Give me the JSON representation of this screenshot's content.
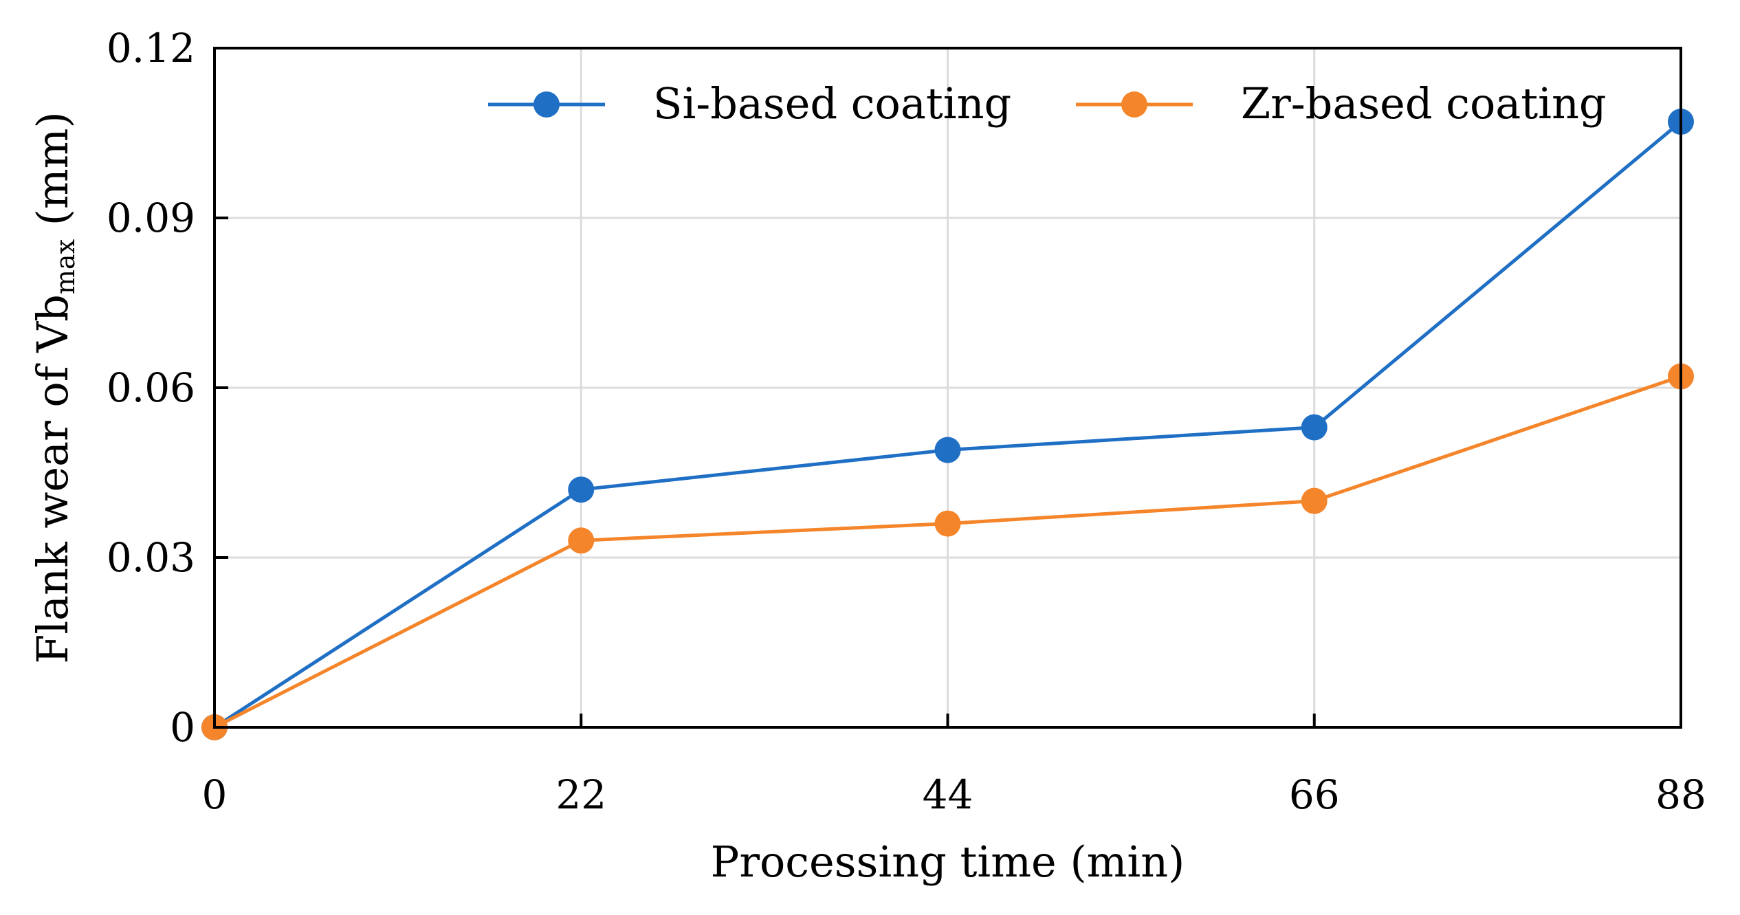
{
  "chart_data": {
    "type": "line",
    "title": "",
    "xlabel": "Processing time (min)",
    "ylabel_main": "Flank wear of Vb",
    "ylabel_subscript": "max",
    "ylabel_suffix": " (mm)",
    "x": [
      0,
      22,
      44,
      66,
      88
    ],
    "xlim": [
      0,
      88
    ],
    "ylim": [
      0,
      0.12
    ],
    "x_ticks": [
      0,
      22,
      44,
      66,
      88
    ],
    "x_tick_labels": [
      "0",
      "22",
      "44",
      "66",
      "88"
    ],
    "y_ticks": [
      0,
      0.03,
      0.06,
      0.09,
      0.12
    ],
    "y_tick_labels": [
      "0",
      "0.03",
      "0.06",
      "0.09",
      "0.12"
    ],
    "grid": true,
    "legend_position": "top-right",
    "series": [
      {
        "name": "Si-based coating",
        "color": "#1f6fc5",
        "values": [
          0,
          0.042,
          0.049,
          0.053,
          0.107
        ]
      },
      {
        "name": "Zr-based coating",
        "color": "#f5852a",
        "values": [
          0,
          0.033,
          0.036,
          0.04,
          0.062
        ]
      }
    ]
  }
}
